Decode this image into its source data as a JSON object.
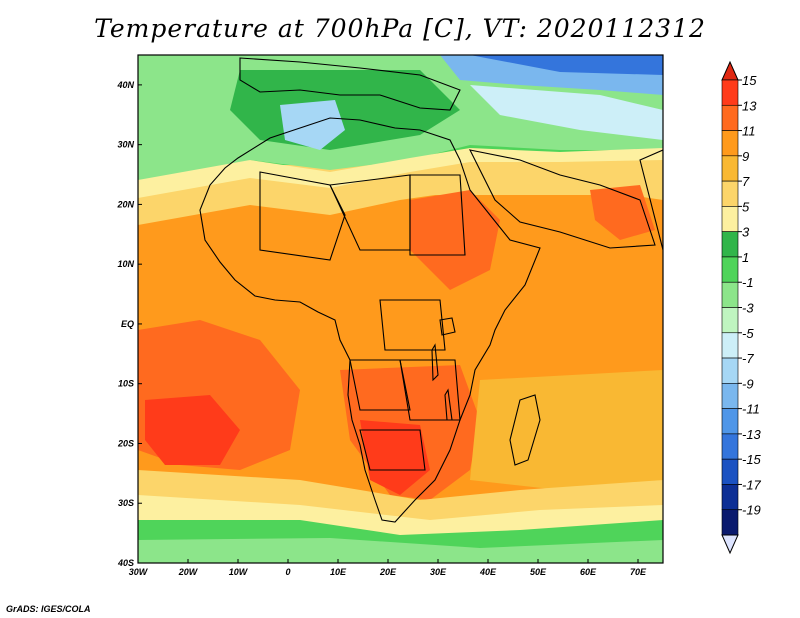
{
  "title": "Temperature at 700hPa [C], VT: 2020112312",
  "credit": "GrADS: IGES/COLA",
  "map": {
    "lon_labels": [
      "30W",
      "20W",
      "10W",
      "0",
      "10E",
      "20E",
      "30E",
      "40E",
      "50E",
      "60E",
      "70E"
    ],
    "lat_labels": [
      "40N",
      "30N",
      "20N",
      "10N",
      "EQ",
      "10S",
      "20S",
      "30S",
      "40S"
    ],
    "lon_range": [
      -30,
      75
    ],
    "lat_range": [
      -40,
      45
    ]
  },
  "colorbar": {
    "labels": [
      "15",
      "13",
      "11",
      "9",
      "7",
      "5",
      "3",
      "1",
      "-1",
      "-3",
      "-5",
      "-7",
      "-9",
      "-11",
      "-13",
      "-15",
      "-17",
      "-19"
    ],
    "colors": [
      "#ff3b1a",
      "#ff6a1f",
      "#ff9a1c",
      "#f9b833",
      "#fcd56a",
      "#fdf0a0",
      "#31b54a",
      "#4fd45a",
      "#8ce58a",
      "#bff5c0",
      "#cdeff8",
      "#a6d7f5",
      "#7ab7ee",
      "#4f96e8",
      "#3475dc",
      "#1b52c2",
      "#0d2f95",
      "#0a1a6e"
    ],
    "top_color": "#e02812",
    "bottom_color": "#dde4ff"
  },
  "legend_colors": {
    "t_15": "#e02812",
    "t_13": "#ff3b1a",
    "t_11": "#ff6a1f",
    "t_9": "#ff9a1c",
    "t_7": "#f9b833",
    "t_5": "#fcd56a",
    "t_3": "#fdf0a0",
    "t_1": "#4fd45a",
    "t_m1": "#8ce58a",
    "t_m3": "#bff5c0",
    "t_m5": "#cdeff8",
    "t_m7": "#a6d7f5"
  }
}
